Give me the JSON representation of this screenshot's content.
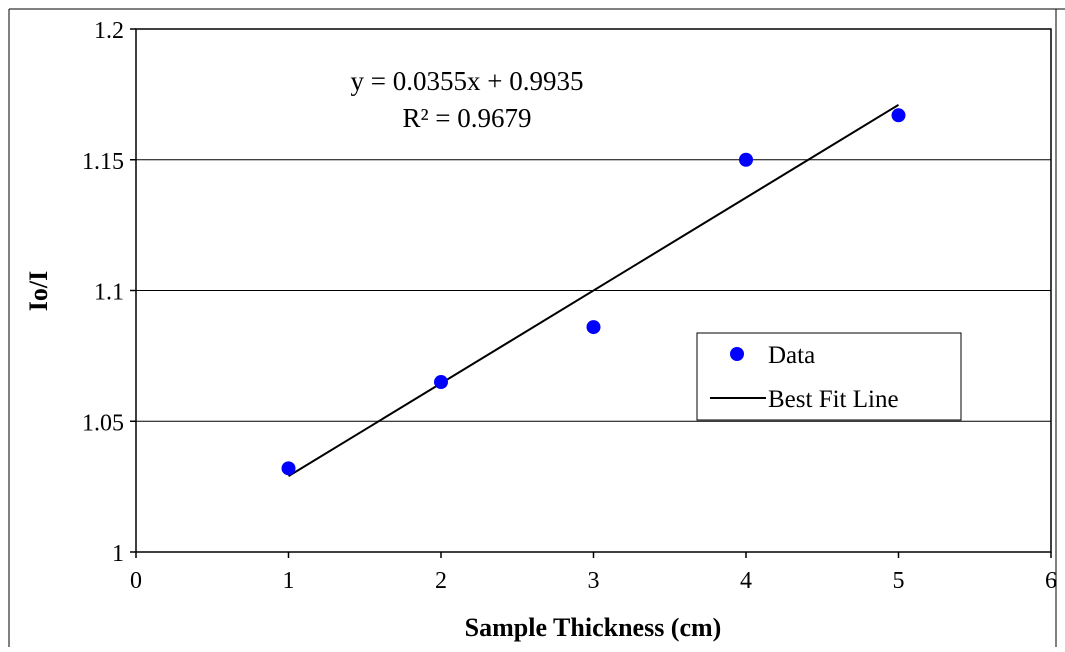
{
  "chart_data": {
    "type": "scatter",
    "title": "",
    "xlabel": "Sample Thickness (cm)",
    "ylabel": "Io/I",
    "xlim": [
      0,
      6
    ],
    "ylim": [
      1,
      1.2
    ],
    "x_ticks": [
      "0",
      "1",
      "2",
      "3",
      "4",
      "5",
      "6"
    ],
    "y_ticks": [
      "1",
      "1.05",
      "1.1",
      "1.15",
      "1.2"
    ],
    "grid": "horizontal",
    "series": [
      {
        "name": "Data",
        "kind": "scatter",
        "color": "#0000ff",
        "x": [
          1,
          2,
          3,
          4,
          5
        ],
        "y": [
          1.032,
          1.065,
          1.086,
          1.15,
          1.167
        ]
      },
      {
        "name": "Best Fit Line",
        "kind": "line",
        "color": "#000000",
        "x": [
          1,
          5
        ],
        "y": [
          1.029,
          1.171
        ]
      }
    ],
    "annotations": {
      "equation": "y = 0.0355x + 0.9935",
      "r_squared": "R² = 0.9679"
    },
    "legend": {
      "placement": "center-right",
      "entries": [
        "Data",
        "Best Fit Line"
      ]
    }
  }
}
